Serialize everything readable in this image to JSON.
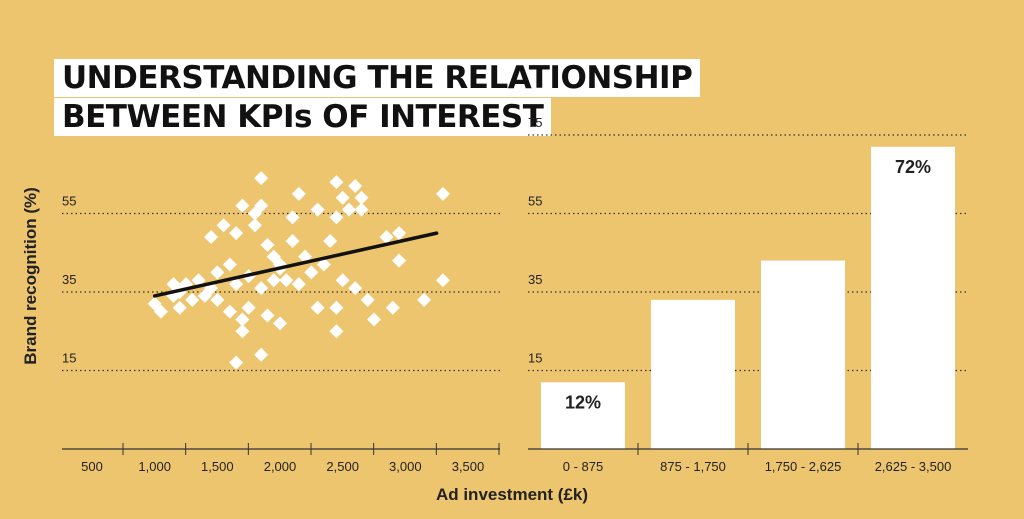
{
  "title": {
    "line1": "UNDERSTANDING THE RELATIONSHIP",
    "line2": "BETWEEN KPIs OF INTEREST"
  },
  "colors": {
    "background": "#EEC56F",
    "marks": "#FFFFFF",
    "trendline": "#111111",
    "text": "#222222"
  },
  "chart_data": [
    {
      "type": "scatter",
      "xlabel": "Ad investment (£k)",
      "ylabel": "Brand recognition (%)",
      "xticks": [
        "500",
        "1,000",
        "1,500",
        "2,000",
        "2,500",
        "3,000",
        "3,500"
      ],
      "yticks": [
        "55",
        "35",
        "15"
      ],
      "xlim": [
        500,
        3500
      ],
      "ylim": [
        -5,
        75
      ],
      "grid": "horizontal dotted",
      "trendline": {
        "x": [
          1000,
          3250
        ],
        "y": [
          34,
          50
        ]
      },
      "points": [
        {
          "x": 1000,
          "y": 32
        },
        {
          "x": 1050,
          "y": 30
        },
        {
          "x": 1150,
          "y": 37
        },
        {
          "x": 1150,
          "y": 34
        },
        {
          "x": 1200,
          "y": 31
        },
        {
          "x": 1200,
          "y": 35
        },
        {
          "x": 1250,
          "y": 37
        },
        {
          "x": 1300,
          "y": 33
        },
        {
          "x": 1350,
          "y": 38
        },
        {
          "x": 1400,
          "y": 34
        },
        {
          "x": 1450,
          "y": 36
        },
        {
          "x": 1450,
          "y": 49
        },
        {
          "x": 1500,
          "y": 40
        },
        {
          "x": 1500,
          "y": 33
        },
        {
          "x": 1550,
          "y": 52
        },
        {
          "x": 1600,
          "y": 42
        },
        {
          "x": 1600,
          "y": 30
        },
        {
          "x": 1650,
          "y": 37
        },
        {
          "x": 1650,
          "y": 50
        },
        {
          "x": 1700,
          "y": 25
        },
        {
          "x": 1700,
          "y": 28
        },
        {
          "x": 1700,
          "y": 57
        },
        {
          "x": 1750,
          "y": 31
        },
        {
          "x": 1750,
          "y": 39
        },
        {
          "x": 1800,
          "y": 52
        },
        {
          "x": 1800,
          "y": 55
        },
        {
          "x": 1850,
          "y": 64
        },
        {
          "x": 1850,
          "y": 36
        },
        {
          "x": 1850,
          "y": 57
        },
        {
          "x": 1900,
          "y": 47
        },
        {
          "x": 1900,
          "y": 29
        },
        {
          "x": 1950,
          "y": 44
        },
        {
          "x": 1950,
          "y": 38
        },
        {
          "x": 2000,
          "y": 27
        },
        {
          "x": 2000,
          "y": 42
        },
        {
          "x": 2050,
          "y": 38
        },
        {
          "x": 2100,
          "y": 54
        },
        {
          "x": 2100,
          "y": 48
        },
        {
          "x": 2150,
          "y": 60
        },
        {
          "x": 2150,
          "y": 37
        },
        {
          "x": 2200,
          "y": 44
        },
        {
          "x": 2250,
          "y": 40
        },
        {
          "x": 2300,
          "y": 31
        },
        {
          "x": 2300,
          "y": 56
        },
        {
          "x": 2350,
          "y": 42
        },
        {
          "x": 2400,
          "y": 48
        },
        {
          "x": 2450,
          "y": 63
        },
        {
          "x": 2450,
          "y": 54
        },
        {
          "x": 2450,
          "y": 31
        },
        {
          "x": 2450,
          "y": 25
        },
        {
          "x": 2500,
          "y": 38
        },
        {
          "x": 2500,
          "y": 59
        },
        {
          "x": 2550,
          "y": 56
        },
        {
          "x": 2600,
          "y": 62
        },
        {
          "x": 2600,
          "y": 36
        },
        {
          "x": 2650,
          "y": 59
        },
        {
          "x": 2650,
          "y": 56
        },
        {
          "x": 2700,
          "y": 33
        },
        {
          "x": 2750,
          "y": 28
        },
        {
          "x": 2850,
          "y": 49
        },
        {
          "x": 2900,
          "y": 31
        },
        {
          "x": 2950,
          "y": 43
        },
        {
          "x": 2950,
          "y": 50
        },
        {
          "x": 3150,
          "y": 33
        },
        {
          "x": 3300,
          "y": 38
        },
        {
          "x": 3300,
          "y": 60
        },
        {
          "x": 1650,
          "y": 17
        },
        {
          "x": 1850,
          "y": 19
        },
        {
          "x": 2000,
          "y": 41
        }
      ]
    },
    {
      "type": "bar",
      "categories": [
        "0 - 875",
        "875 - 1,750",
        "1,750 - 2,625",
        "2,625 - 3,500"
      ],
      "values": [
        12,
        33,
        43,
        72
      ],
      "data_labels": [
        "12%",
        "",
        "",
        "72%"
      ],
      "yticks": [
        "75",
        "55",
        "35",
        "15"
      ],
      "ylim": [
        -5,
        75
      ],
      "grid": "horizontal dotted"
    }
  ]
}
